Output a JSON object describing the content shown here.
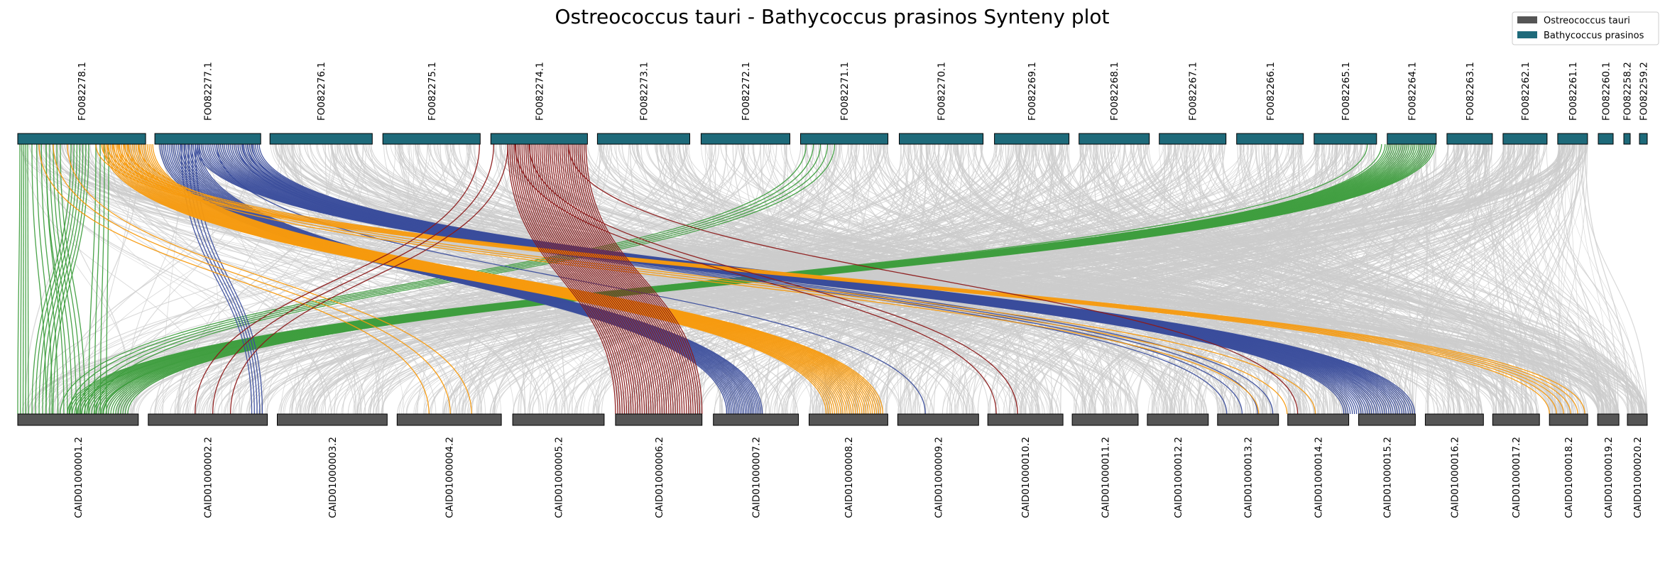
{
  "chart_data": {
    "type": "synteny",
    "title": "Ostreococcus tauri - Bathycoccus prasinos Synteny plot",
    "legend": {
      "placement": "top-right",
      "entries": [
        {
          "name": "Ostreococcus tauri",
          "color": "#555555"
        },
        {
          "name": "Bathycoccus prasinos",
          "color": "#1e6a7a"
        }
      ]
    },
    "top_genome": {
      "name": "Bathycoccus prasinos",
      "color": "#1e6a7a",
      "chromosomes": [
        {
          "label": "FO082278.1",
          "start": 0,
          "end": 180
        },
        {
          "label": "FO082277.1",
          "start": 193,
          "end": 342
        },
        {
          "label": "FO082276.1",
          "start": 355,
          "end": 499
        },
        {
          "label": "FO082275.1",
          "start": 514,
          "end": 651
        },
        {
          "label": "FO082274.1",
          "start": 666,
          "end": 802
        },
        {
          "label": "FO082273.1",
          "start": 816,
          "end": 946
        },
        {
          "label": "FO082272.1",
          "start": 962,
          "end": 1087
        },
        {
          "label": "FO082271.1",
          "start": 1102,
          "end": 1225
        },
        {
          "label": "FO082270.1",
          "start": 1241,
          "end": 1359
        },
        {
          "label": "FO082269.1",
          "start": 1375,
          "end": 1480
        },
        {
          "label": "FO082268.1",
          "start": 1494,
          "end": 1593
        },
        {
          "label": "FO082267.1",
          "start": 1607,
          "end": 1701
        },
        {
          "label": "FO082266.1",
          "start": 1716,
          "end": 1810
        },
        {
          "label": "FO082265.1",
          "start": 1825,
          "end": 1913
        },
        {
          "label": "FO082264.1",
          "start": 1928,
          "end": 1997
        },
        {
          "label": "FO082263.1",
          "start": 2012,
          "end": 2076
        },
        {
          "label": "FO082262.1",
          "start": 2091,
          "end": 2153
        },
        {
          "label": "FO082261.1",
          "start": 2168,
          "end": 2210
        },
        {
          "label": "FO082260.1",
          "start": 2225,
          "end": 2246
        },
        {
          "label": "FO082258.2",
          "start": 2261,
          "end": 2270
        },
        {
          "label": "FO082259.2",
          "start": 2283,
          "end": 2294
        }
      ]
    },
    "bottom_genome": {
      "name": "Ostreococcus tauri",
      "color": "#555555",
      "chromosomes": [
        {
          "label": "CAID01000001.2",
          "start": 0,
          "end": 170
        },
        {
          "label": "CAID01000002.2",
          "start": 184,
          "end": 352
        },
        {
          "label": "CAID01000003.2",
          "start": 366,
          "end": 521
        },
        {
          "label": "CAID01000004.2",
          "start": 535,
          "end": 682
        },
        {
          "label": "CAID01000005.2",
          "start": 698,
          "end": 827
        },
        {
          "label": "CAID01000006.2",
          "start": 843,
          "end": 965
        },
        {
          "label": "CAID01000007.2",
          "start": 981,
          "end": 1101
        },
        {
          "label": "CAID01000008.2",
          "start": 1116,
          "end": 1227
        },
        {
          "label": "CAID01000009.2",
          "start": 1241,
          "end": 1355
        },
        {
          "label": "CAID01000010.2",
          "start": 1368,
          "end": 1474
        },
        {
          "label": "CAID01000011.2",
          "start": 1487,
          "end": 1580
        },
        {
          "label": "CAID01000012.2",
          "start": 1593,
          "end": 1679
        },
        {
          "label": "CAID01000013.2",
          "start": 1692,
          "end": 1778
        },
        {
          "label": "CAID01000014.2",
          "start": 1791,
          "end": 1877
        },
        {
          "label": "CAID01000015.2",
          "start": 1891,
          "end": 1971
        },
        {
          "label": "CAID01000016.2",
          "start": 1985,
          "end": 2067
        },
        {
          "label": "CAID01000017.2",
          "start": 2080,
          "end": 2146
        },
        {
          "label": "CAID01000018.2",
          "start": 2160,
          "end": 2214
        },
        {
          "label": "CAID01000019.2",
          "start": 2228,
          "end": 2258
        },
        {
          "label": "CAID01000020.2",
          "start": 2270,
          "end": 2298
        }
      ]
    },
    "highlight_colors": [
      "#3f9e3f",
      "#3a4d9c",
      "#f79a0e",
      "#8c1a1a"
    ],
    "background_link_color": "#cccccc",
    "links": [
      {
        "top": [
          3,
          14
        ],
        "bottom": [
          0,
          15
        ],
        "color": "#3f9e3f",
        "n": 5
      },
      {
        "top": [
          20,
          40
        ],
        "bottom": [
          40,
          65
        ],
        "color": "#3f9e3f",
        "n": 4
      },
      {
        "top": [
          40,
          60
        ],
        "bottom": [
          70,
          95
        ],
        "color": "#3f9e3f",
        "n": 5
      },
      {
        "top": [
          75,
          100
        ],
        "bottom": [
          20,
          50
        ],
        "color": "#3f9e3f",
        "n": 7
      },
      {
        "top": [
          110,
          128
        ],
        "bottom": [
          100,
          125
        ],
        "color": "#3f9e3f",
        "n": 4
      },
      {
        "top": [
          1925,
          1995
        ],
        "bottom": [
          70,
          155
        ],
        "color": "#3f9e3f",
        "n": 26
      },
      {
        "top": [
          1110,
          1150
        ],
        "bottom": [
          60,
          110
        ],
        "color": "#3f9e3f",
        "n": 5
      },
      {
        "top": [
          1900,
          1920
        ],
        "bottom": [
          90,
          120
        ],
        "color": "#3f9e3f",
        "n": 2
      },
      {
        "top": [
          230,
          250
        ],
        "bottom": [
          330,
          345
        ],
        "color": "#3a4d9c",
        "n": 5
      },
      {
        "top": [
          200,
          255
        ],
        "bottom": [
          1000,
          1050
        ],
        "color": "#3a4d9c",
        "n": 22
      },
      {
        "top": [
          250,
          340
        ],
        "bottom": [
          1870,
          1970
        ],
        "color": "#3a4d9c",
        "n": 34
      },
      {
        "top": [
          270,
          290
        ],
        "bottom": [
          1260,
          1300
        ],
        "color": "#3a4d9c",
        "n": 1
      },
      {
        "top": [
          310,
          330
        ],
        "bottom": [
          1705,
          1770
        ],
        "color": "#3a4d9c",
        "n": 4
      },
      {
        "top": [
          120,
          190
        ],
        "bottom": [
          1140,
          1220
        ],
        "color": "#f79a0e",
        "n": 28
      },
      {
        "top": [
          30,
          70
        ],
        "bottom": [
          580,
          640
        ],
        "color": "#f79a0e",
        "n": 3
      },
      {
        "top": [
          110,
          150
        ],
        "bottom": [
          2160,
          2210
        ],
        "color": "#f79a0e",
        "n": 6
      },
      {
        "top": [
          140,
          170
        ],
        "bottom": [
          1750,
          1830
        ],
        "color": "#f79a0e",
        "n": 3
      },
      {
        "top": [
          690,
          800
        ],
        "bottom": [
          843,
          965
        ],
        "color": "#8c1a1a",
        "n": 40
      },
      {
        "top": [
          650,
          690
        ],
        "bottom": [
          250,
          300
        ],
        "color": "#8c1a1a",
        "n": 3
      },
      {
        "top": [
          700,
          720
        ],
        "bottom": [
          1380,
          1410
        ],
        "color": "#8c1a1a",
        "n": 2
      },
      {
        "top": [
          760,
          790
        ],
        "bottom": [
          1780,
          1830
        ],
        "color": "#8c1a1a",
        "n": 1
      }
    ]
  }
}
